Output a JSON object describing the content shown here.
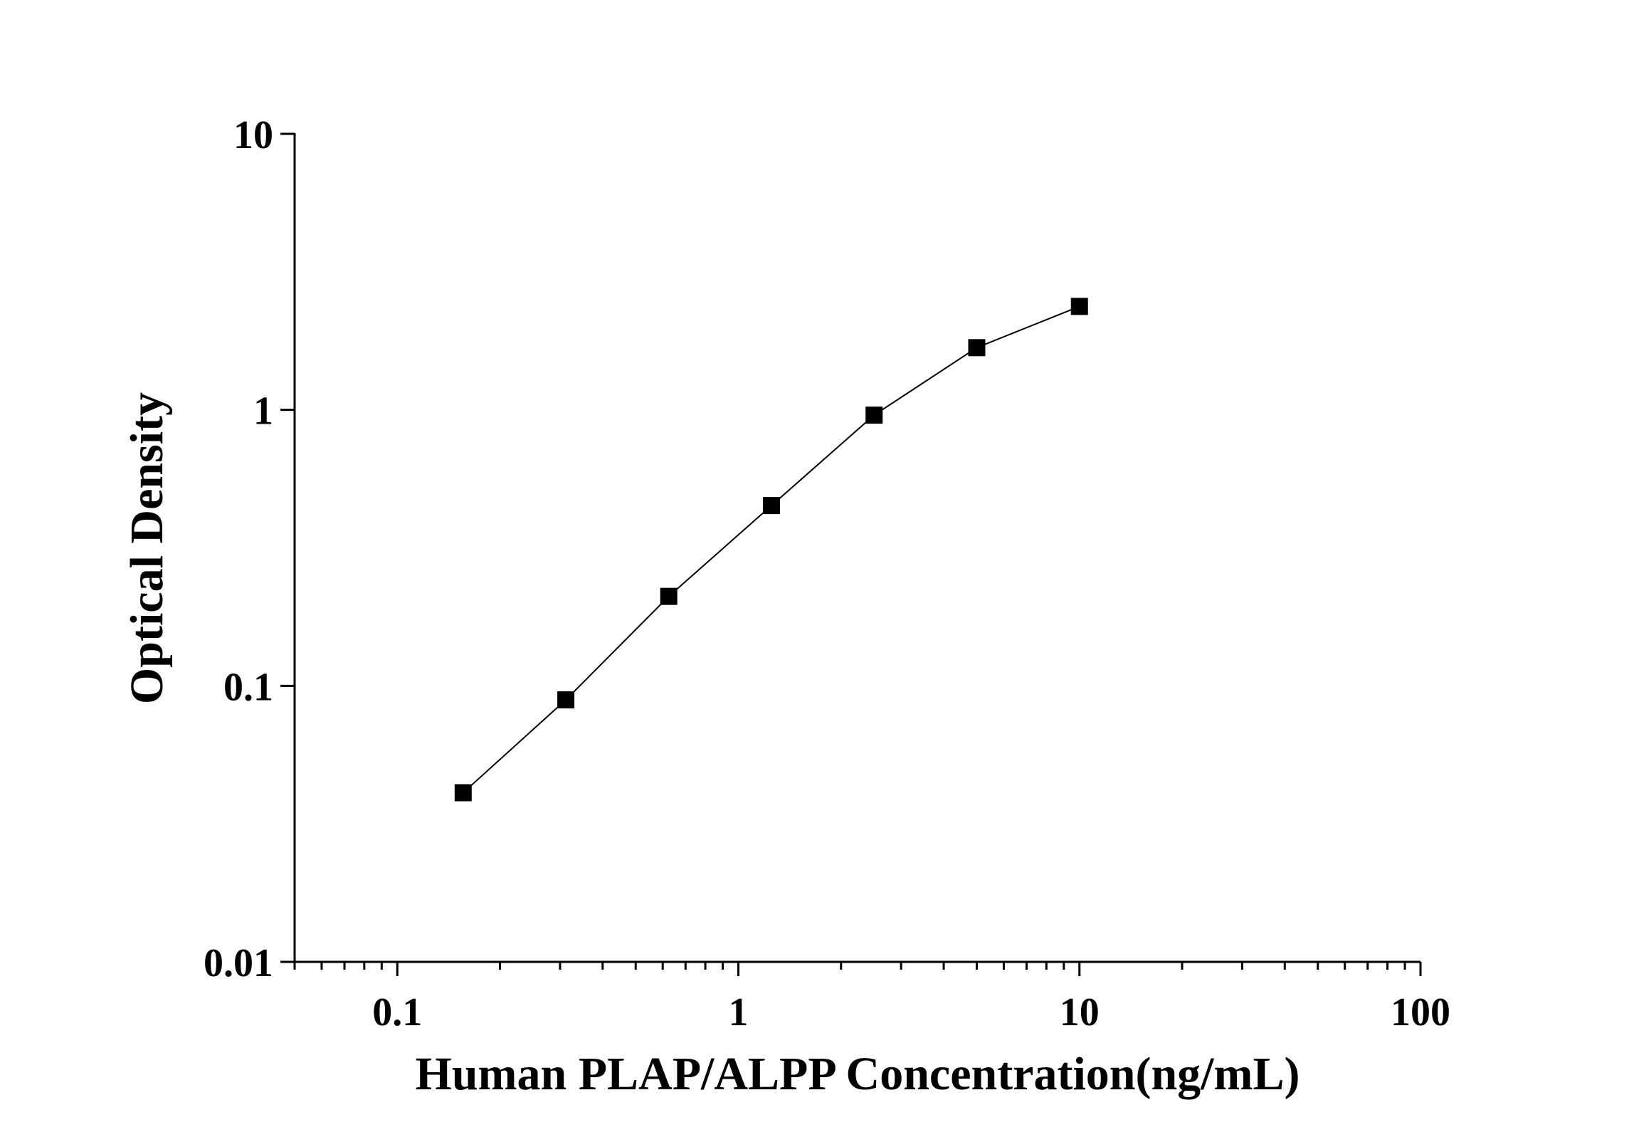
{
  "chart_data": {
    "type": "line",
    "x_label": "Human PLAP/ALPP Concentration(ng/mL)",
    "y_label": "Optical Density",
    "x": [
      0.156,
      0.312,
      0.625,
      1.25,
      2.5,
      5,
      10
    ],
    "series": [
      {
        "color": "#000000",
        "values": [
          0.041,
          0.089,
          0.211,
          0.45,
          0.957,
          1.68,
          2.37
        ]
      }
    ],
    "xlim": [
      0.05,
      100
    ],
    "ylim": [
      0.01,
      10
    ],
    "xticks": [
      0.1,
      1,
      10,
      100
    ],
    "yticks": [
      0.01,
      0.1,
      1,
      10
    ],
    "xlog": true,
    "ylog": true,
    "marker": "square"
  }
}
